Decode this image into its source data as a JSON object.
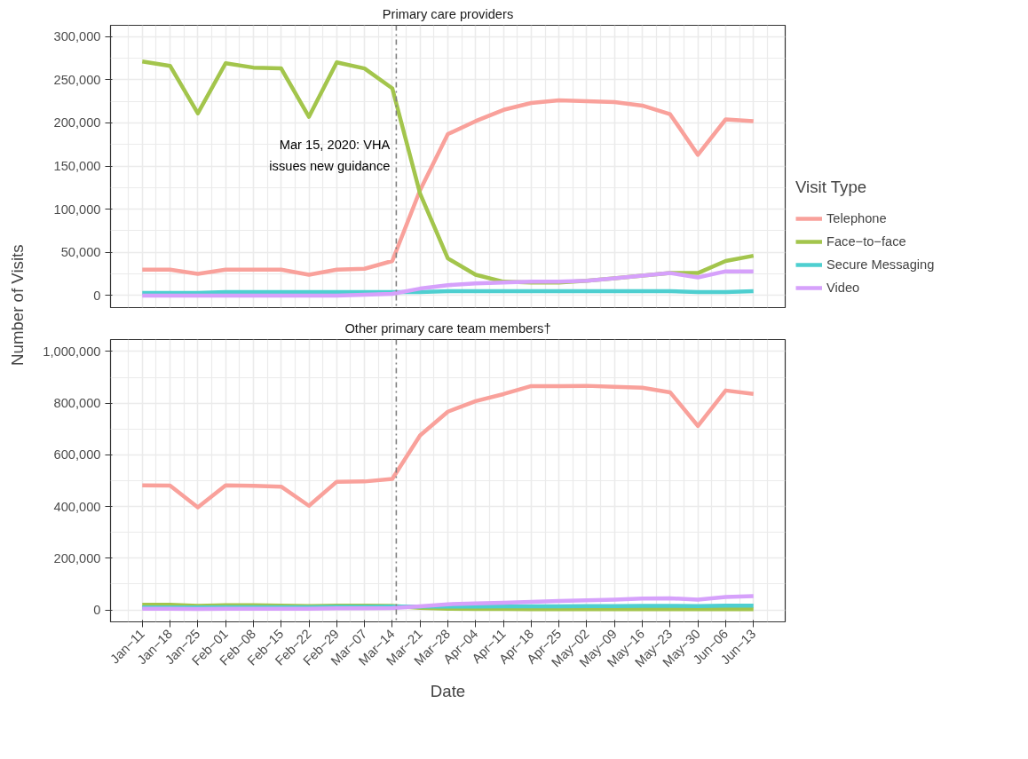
{
  "chart_data": [
    {
      "type": "line",
      "title": "Primary care providers",
      "ylabel": "Number of Visits",
      "legend_title": "Visit Type",
      "legend": "right",
      "grid": true,
      "tick_labels": "y",
      "x": [
        "2020-01-11",
        "2020-01-18",
        "2020-01-25",
        "2020-02-01",
        "2020-02-08",
        "2020-02-15",
        "2020-02-22",
        "2020-02-29",
        "2020-03-07",
        "2020-03-14",
        "2020-03-21",
        "2020-03-28",
        "2020-04-04",
        "2020-04-11",
        "2020-04-18",
        "2020-04-25",
        "2020-05-02",
        "2020-05-09",
        "2020-05-16",
        "2020-05-23",
        "2020-05-30",
        "2020-06-06",
        "2020-06-13"
      ],
      "xlim": [
        "2020-01-03",
        "2020-06-21"
      ],
      "xticks": [
        {
          "value": "2020-01-11",
          "label": null
        },
        {
          "value": "2020-01-18",
          "label": null
        },
        {
          "value": "2020-01-25",
          "label": null
        },
        {
          "value": "2020-02-01",
          "label": null
        },
        {
          "value": "2020-02-08",
          "label": null
        },
        {
          "value": "2020-02-15",
          "label": null
        },
        {
          "value": "2020-02-22",
          "label": null
        },
        {
          "value": "2020-02-29",
          "label": null
        },
        {
          "value": "2020-03-07",
          "label": null
        },
        {
          "value": "2020-03-14",
          "label": null
        },
        {
          "value": "2020-03-21",
          "label": null
        },
        {
          "value": "2020-03-28",
          "label": null
        },
        {
          "value": "2020-04-04",
          "label": null
        },
        {
          "value": "2020-04-11",
          "label": null
        },
        {
          "value": "2020-04-18",
          "label": null
        },
        {
          "value": "2020-04-25",
          "label": null
        },
        {
          "value": "2020-05-02",
          "label": null
        },
        {
          "value": "2020-05-09",
          "label": null
        },
        {
          "value": "2020-05-16",
          "label": null
        },
        {
          "value": "2020-05-23",
          "label": null
        },
        {
          "value": "2020-05-30",
          "label": null
        },
        {
          "value": "2020-06-06",
          "label": null
        },
        {
          "value": "2020-06-13",
          "label": null
        }
      ],
      "ylim": [
        -14000,
        313000
      ],
      "yticks": [
        {
          "value": 0,
          "label": "0"
        },
        {
          "value": 50000,
          "label": "50,000"
        },
        {
          "value": 100000,
          "label": "100,000"
        },
        {
          "value": 150000,
          "label": "150,000"
        },
        {
          "value": 200000,
          "label": "200,000"
        },
        {
          "value": 250000,
          "label": "250,000"
        },
        {
          "value": 300000,
          "label": "300,000"
        }
      ],
      "ref_lines": [
        {
          "axis": "x",
          "value": "2020-03-15",
          "label": "Mar 15, 2020: VHA\nissues new guidance",
          "color": "#7f7f7f",
          "line_style": "dashdot"
        }
      ],
      "series": [
        {
          "name": "Telephone",
          "color": "#f9a19b",
          "values": [
            30000,
            30000,
            25000,
            30000,
            30000,
            30000,
            24000,
            30000,
            31000,
            40000,
            122000,
            187000,
            202000,
            215000,
            223000,
            226000,
            225000,
            224000,
            220000,
            210000,
            163000,
            204000,
            202000
          ]
        },
        {
          "name": "Face−to−face",
          "color": "#a3c54c",
          "values": [
            271000,
            266000,
            211000,
            269000,
            264000,
            263000,
            207000,
            270000,
            263000,
            240000,
            118000,
            43000,
            24000,
            16000,
            15000,
            15000,
            17000,
            20000,
            23000,
            26000,
            26000,
            40000,
            46000
          ]
        },
        {
          "name": "Secure Messaging",
          "color": "#4ecfd0",
          "values": [
            3000,
            3000,
            3000,
            4000,
            4000,
            4000,
            4000,
            4000,
            4000,
            4000,
            4000,
            5000,
            5000,
            5000,
            5000,
            5000,
            5000,
            5000,
            5000,
            5000,
            4000,
            4000,
            5000
          ]
        },
        {
          "name": "Video",
          "color": "#d6a1fb",
          "values": [
            0,
            0,
            0,
            0,
            0,
            0,
            0,
            0,
            1000,
            2000,
            8000,
            12000,
            14000,
            15000,
            16000,
            16000,
            17000,
            20000,
            23000,
            26000,
            21000,
            28000,
            28000
          ]
        }
      ]
    },
    {
      "type": "line",
      "title": "Other primary care team members†",
      "xlabel": "Date",
      "grid": true,
      "x": [
        "2020-01-11",
        "2020-01-18",
        "2020-01-25",
        "2020-02-01",
        "2020-02-08",
        "2020-02-15",
        "2020-02-22",
        "2020-02-29",
        "2020-03-07",
        "2020-03-14",
        "2020-03-21",
        "2020-03-28",
        "2020-04-04",
        "2020-04-11",
        "2020-04-18",
        "2020-04-25",
        "2020-05-02",
        "2020-05-09",
        "2020-05-16",
        "2020-05-23",
        "2020-05-30",
        "2020-06-06",
        "2020-06-13"
      ],
      "xlim": [
        "2020-01-03",
        "2020-06-21"
      ],
      "xticks": [
        {
          "value": "2020-01-11",
          "label": "Jan−11"
        },
        {
          "value": "2020-01-18",
          "label": "Jan−18"
        },
        {
          "value": "2020-01-25",
          "label": "Jan−25"
        },
        {
          "value": "2020-02-01",
          "label": "Feb−01"
        },
        {
          "value": "2020-02-08",
          "label": "Feb−08"
        },
        {
          "value": "2020-02-15",
          "label": "Feb−15"
        },
        {
          "value": "2020-02-22",
          "label": "Feb−22"
        },
        {
          "value": "2020-02-29",
          "label": "Feb−29"
        },
        {
          "value": "2020-03-07",
          "label": "Mar−07"
        },
        {
          "value": "2020-03-14",
          "label": "Mar−14"
        },
        {
          "value": "2020-03-21",
          "label": "Mar−21"
        },
        {
          "value": "2020-03-28",
          "label": "Mar−28"
        },
        {
          "value": "2020-04-04",
          "label": "Apr−04"
        },
        {
          "value": "2020-04-11",
          "label": "Apr−11"
        },
        {
          "value": "2020-04-18",
          "label": "Apr−18"
        },
        {
          "value": "2020-04-25",
          "label": "Apr−25"
        },
        {
          "value": "2020-05-02",
          "label": "May−02"
        },
        {
          "value": "2020-05-09",
          "label": "May−09"
        },
        {
          "value": "2020-05-16",
          "label": "May−16"
        },
        {
          "value": "2020-05-23",
          "label": "May−23"
        },
        {
          "value": "2020-05-30",
          "label": "May−30"
        },
        {
          "value": "2020-06-06",
          "label": "Jun−06"
        },
        {
          "value": "2020-06-13",
          "label": "Jun−13"
        }
      ],
      "ylim": [
        -46000,
        1046000
      ],
      "yticks": [
        {
          "value": 0,
          "label": "0"
        },
        {
          "value": 200000,
          "label": "200,000"
        },
        {
          "value": 400000,
          "label": "400,000"
        },
        {
          "value": 600000,
          "label": "600,000"
        },
        {
          "value": 800000,
          "label": "800,000"
        },
        {
          "value": 1000000,
          "label": "1,000,000"
        }
      ],
      "ref_lines": [
        {
          "axis": "x",
          "value": "2020-03-15",
          "color": "#7f7f7f",
          "line_style": "dashdot"
        }
      ],
      "series": [
        {
          "color": "#f9a19b",
          "values": [
            482000,
            481000,
            397000,
            482000,
            480000,
            477000,
            403000,
            496000,
            497000,
            507000,
            675000,
            767000,
            808000,
            835000,
            866000,
            866000,
            867000,
            863000,
            860000,
            842000,
            712000,
            849000,
            836000
          ]
        },
        {
          "color": "#a3c54c",
          "values": [
            20000,
            20000,
            16000,
            18000,
            18000,
            17000,
            15000,
            17000,
            17000,
            16000,
            8000,
            5000,
            4000,
            4000,
            3000,
            3000,
            3000,
            3000,
            3000,
            3000,
            3000,
            3000,
            3000
          ]
        },
        {
          "color": "#4ecfd0",
          "values": [
            10000,
            10000,
            10000,
            11000,
            11000,
            11000,
            11000,
            12000,
            12000,
            13000,
            13000,
            13000,
            13000,
            14000,
            14000,
            14000,
            15000,
            15000,
            16000,
            16000,
            15000,
            17000,
            17000
          ]
        },
        {
          "color": "#d6a1fb",
          "values": [
            5000,
            5000,
            4000,
            5000,
            5000,
            5000,
            5000,
            6000,
            6000,
            7000,
            14000,
            22000,
            25000,
            28000,
            31000,
            35000,
            37000,
            40000,
            44000,
            45000,
            40000,
            50000,
            54000
          ]
        }
      ]
    }
  ]
}
